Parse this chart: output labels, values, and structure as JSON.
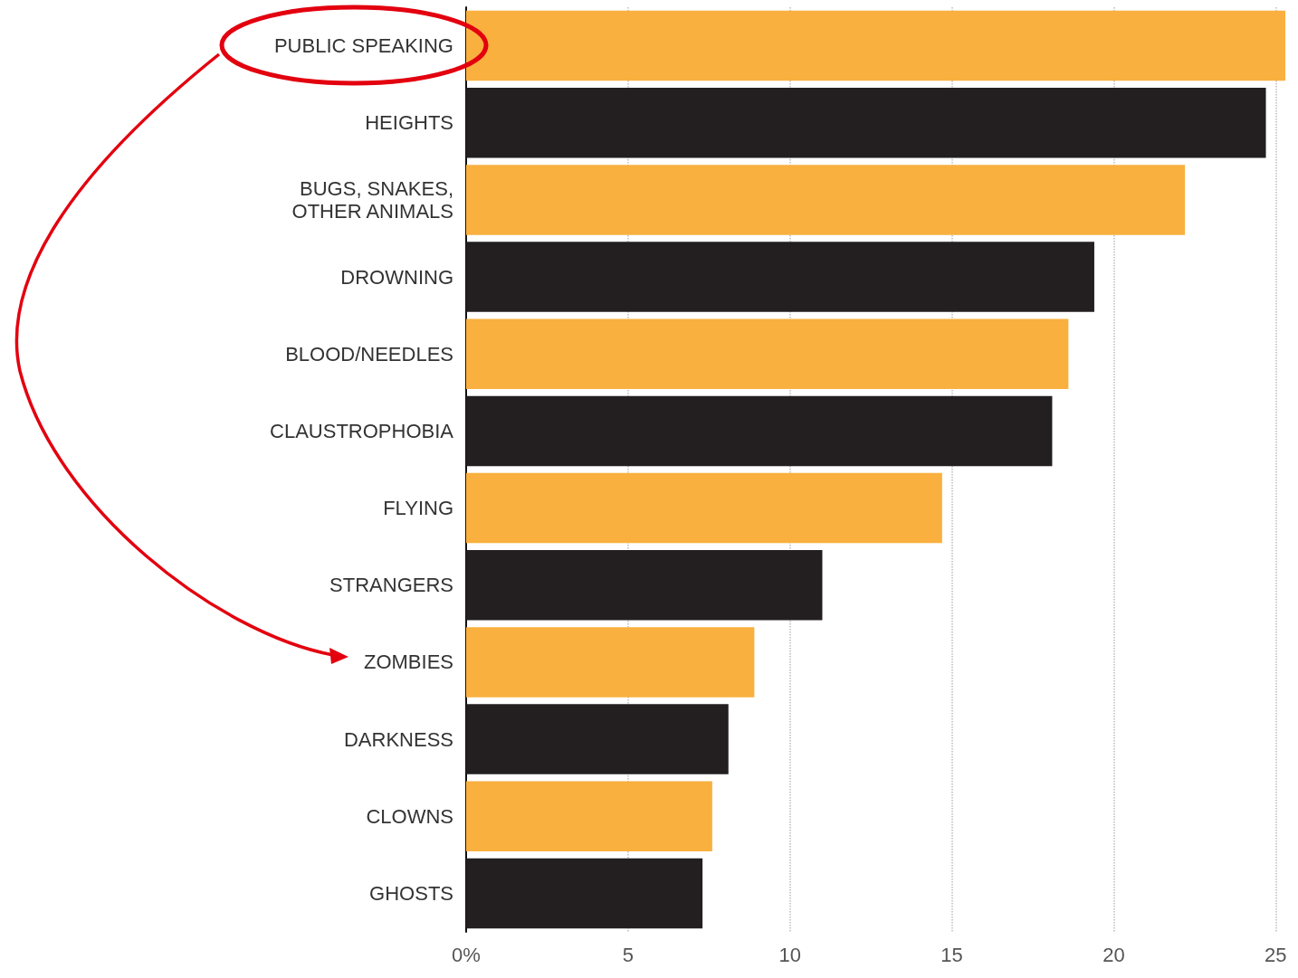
{
  "chart_data": {
    "type": "bar",
    "orientation": "horizontal",
    "categories": [
      "PUBLIC SPEAKING",
      "HEIGHTS",
      "BUGS, SNAKES,\nOTHER ANIMALS",
      "DROWNING",
      "BLOOD/NEEDLES",
      "CLAUSTROPHOBIA",
      "FLYING",
      "STRANGERS",
      "ZOMBIES",
      "DARKNESS",
      "CLOWNS",
      "GHOSTS"
    ],
    "values": [
      25.3,
      24.7,
      22.2,
      19.4,
      18.6,
      18.1,
      14.7,
      11.0,
      8.9,
      8.1,
      7.6,
      7.3
    ],
    "colors": [
      "#f9b03f",
      "#231f20",
      "#f9b03f",
      "#231f20",
      "#f9b03f",
      "#231f20",
      "#f9b03f",
      "#231f20",
      "#f9b03f",
      "#231f20",
      "#f9b03f",
      "#231f20"
    ],
    "xlim": [
      0,
      25.3
    ],
    "xticks": [
      {
        "value": 0,
        "label": "0%"
      },
      5,
      10,
      15,
      20,
      25
    ],
    "grid": "x"
  }
}
